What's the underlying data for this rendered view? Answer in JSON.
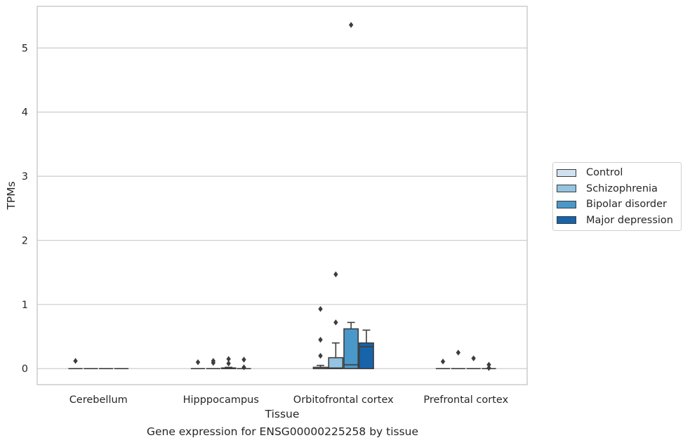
{
  "chart_data": {
    "type": "boxplot",
    "xlabel": "Tissue",
    "ylabel": "TPMs",
    "caption": "Gene expression for ENSG00000225258 by tissue",
    "ylim": [
      -0.25,
      5.65
    ],
    "yticks": [
      0,
      1,
      2,
      3,
      4,
      5
    ],
    "grid": "horizontal",
    "legend_position": "right",
    "categories": [
      "Cerebellum",
      "Hipppocampus",
      "Orbitofrontal cortex",
      "Prefrontal cortex"
    ],
    "series": [
      {
        "name": "Control",
        "color": "#d0e1f2",
        "boxes": [
          {
            "category": "Cerebellum",
            "q1": 0,
            "median": 0,
            "q3": 0,
            "whisker_low": 0,
            "whisker_high": 0,
            "outliers": [
              0.12
            ]
          },
          {
            "category": "Hipppocampus",
            "q1": 0,
            "median": 0,
            "q3": 0,
            "whisker_low": 0,
            "whisker_high": 0,
            "outliers": [
              0.1
            ]
          },
          {
            "category": "Orbitofrontal cortex",
            "q1": 0,
            "median": 0,
            "q3": 0.02,
            "whisker_low": 0,
            "whisker_high": 0.05,
            "outliers": [
              0.2,
              0.45,
              0.93
            ]
          },
          {
            "category": "Prefrontal cortex",
            "q1": 0,
            "median": 0,
            "q3": 0,
            "whisker_low": 0,
            "whisker_high": 0,
            "outliers": [
              0.11
            ]
          }
        ]
      },
      {
        "name": "Schizophrenia",
        "color": "#94c4df",
        "boxes": [
          {
            "category": "Cerebellum",
            "q1": 0,
            "median": 0,
            "q3": 0,
            "whisker_low": 0,
            "whisker_high": 0,
            "outliers": []
          },
          {
            "category": "Hipppocampus",
            "q1": 0,
            "median": 0,
            "q3": 0,
            "whisker_low": 0,
            "whisker_high": 0,
            "outliers": [
              0.09,
              0.12
            ]
          },
          {
            "category": "Orbitofrontal cortex",
            "q1": 0,
            "median": 0.01,
            "q3": 0.17,
            "whisker_low": 0,
            "whisker_high": 0.4,
            "outliers": [
              0.72,
              1.47
            ]
          },
          {
            "category": "Prefrontal cortex",
            "q1": 0,
            "median": 0,
            "q3": 0,
            "whisker_low": 0,
            "whisker_high": 0,
            "outliers": [
              0.25
            ]
          }
        ]
      },
      {
        "name": "Bipolar disorder",
        "color": "#4a98c9",
        "boxes": [
          {
            "category": "Cerebellum",
            "q1": 0,
            "median": 0,
            "q3": 0,
            "whisker_low": 0,
            "whisker_high": 0,
            "outliers": []
          },
          {
            "category": "Hipppocampus",
            "q1": 0,
            "median": 0,
            "q3": 0.01,
            "whisker_low": 0,
            "whisker_high": 0.02,
            "outliers": [
              0.08,
              0.15
            ]
          },
          {
            "category": "Orbitofrontal cortex",
            "q1": 0,
            "median": 0.06,
            "q3": 0.62,
            "whisker_low": 0,
            "whisker_high": 0.72,
            "outliers": [
              5.36
            ]
          },
          {
            "category": "Prefrontal cortex",
            "q1": 0,
            "median": 0,
            "q3": 0,
            "whisker_low": 0,
            "whisker_high": 0,
            "outliers": [
              0.16
            ]
          }
        ]
      },
      {
        "name": "Major depression",
        "color": "#1764ab",
        "boxes": [
          {
            "category": "Cerebellum",
            "q1": 0,
            "median": 0,
            "q3": 0,
            "whisker_low": 0,
            "whisker_high": 0,
            "outliers": []
          },
          {
            "category": "Hipppocampus",
            "q1": 0,
            "median": 0,
            "q3": 0,
            "whisker_low": 0,
            "whisker_high": 0,
            "outliers": [
              0.02,
              0.14
            ]
          },
          {
            "category": "Orbitofrontal cortex",
            "q1": 0,
            "median": 0.34,
            "q3": 0.4,
            "whisker_low": 0,
            "whisker_high": 0.6,
            "outliers": []
          },
          {
            "category": "Prefrontal cortex",
            "q1": 0,
            "median": 0,
            "q3": 0,
            "whisker_low": 0,
            "whisker_high": 0,
            "outliers": [
              0.01,
              0.06
            ]
          }
        ]
      }
    ]
  },
  "style": {
    "grid_color": "#cccccc",
    "line_color": "#3d3d3d",
    "frame_color": "#cccccc"
  }
}
